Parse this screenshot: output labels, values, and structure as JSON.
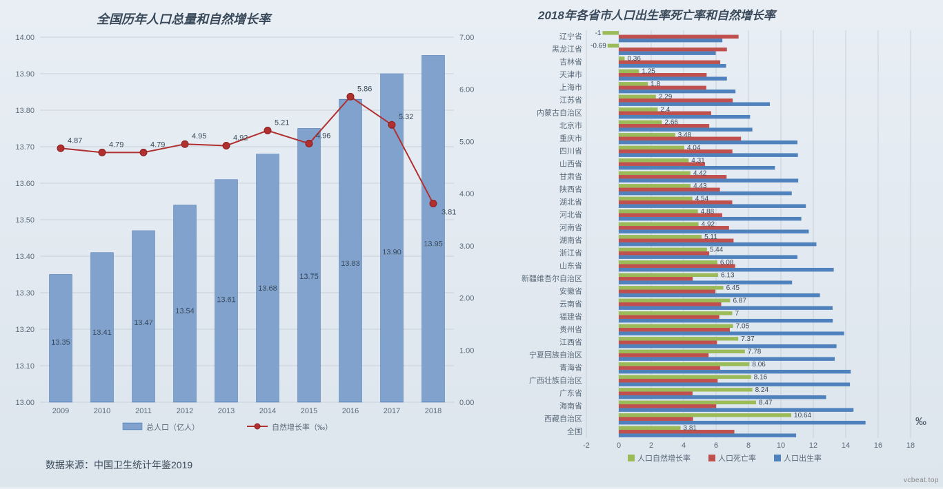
{
  "left_chart": {
    "title": "全国历年人口总量和自然增长率",
    "title_fontsize": 18,
    "type": "bar+line",
    "years": [
      "2009",
      "2010",
      "2011",
      "2012",
      "2013",
      "2014",
      "2015",
      "2016",
      "2017",
      "2018"
    ],
    "bar_series": {
      "label": "总人口（亿人）",
      "values": [
        13.35,
        13.41,
        13.47,
        13.54,
        13.61,
        13.68,
        13.75,
        13.83,
        13.9,
        13.95
      ],
      "color": "#4a7ab8",
      "pattern": "horizontal-hatch",
      "y_axis": "left"
    },
    "line_series": {
      "label": "自然增长率（‰）",
      "values": [
        4.87,
        4.79,
        4.79,
        4.95,
        4.92,
        5.21,
        4.96,
        5.86,
        5.32,
        3.81
      ],
      "color": "#b03030",
      "marker": "circle",
      "marker_size": 5,
      "line_width": 2,
      "y_axis": "right"
    },
    "y_left": {
      "min": 13.0,
      "max": 14.0,
      "step": 0.1,
      "labels": [
        "13.00",
        "13.10",
        "13.20",
        "13.30",
        "13.40",
        "13.50",
        "13.60",
        "13.70",
        "13.80",
        "13.90",
        "14.00"
      ]
    },
    "y_right": {
      "min": 0.0,
      "max": 7.0,
      "step": 1.0,
      "labels": [
        "0.00",
        "1.00",
        "2.00",
        "3.00",
        "4.00",
        "5.00",
        "6.00",
        "7.00"
      ]
    },
    "background_color": "transparent",
    "grid_color": "#c8d0d8",
    "source_note": "数据来源：中国卫生统计年鉴2019"
  },
  "right_chart": {
    "title": "2018年各省市人口出生率死亡率和自然增长率",
    "title_fontsize": 17,
    "type": "horizontal-grouped-bar",
    "x": {
      "min": -2,
      "max": 18,
      "step": 2,
      "labels": [
        "-2",
        "0",
        "2",
        "4",
        "6",
        "8",
        "10",
        "12",
        "14",
        "16",
        "18"
      ]
    },
    "unit_symbol": "‰",
    "series": [
      {
        "key": "natural",
        "label": "人口自然增长率",
        "color": "#9bbb59"
      },
      {
        "key": "death",
        "label": "人口死亡率",
        "color": "#c0504d"
      },
      {
        "key": "birth",
        "label": "人口出生率",
        "color": "#4f81bd"
      }
    ],
    "rows": [
      {
        "region": "辽宁省",
        "natural": -1.0,
        "death": 7.39,
        "birth": 6.39,
        "show_value": "-1"
      },
      {
        "region": "黑龙江省",
        "natural": -0.69,
        "death": 6.67,
        "birth": 5.98,
        "show_value": "-0.69"
      },
      {
        "region": "吉林省",
        "natural": 0.36,
        "death": 6.26,
        "birth": 6.62,
        "show_value": "0.36"
      },
      {
        "region": "天津市",
        "natural": 1.25,
        "death": 5.42,
        "birth": 6.67,
        "show_value": "1.25"
      },
      {
        "region": "上海市",
        "natural": 1.8,
        "death": 5.4,
        "birth": 7.2,
        "show_value": "1.8"
      },
      {
        "region": "江苏省",
        "natural": 2.29,
        "death": 7.03,
        "birth": 9.32,
        "show_value": "2.29"
      },
      {
        "region": "内蒙古自治区",
        "natural": 2.4,
        "death": 5.7,
        "birth": 8.1,
        "show_value": "2.4"
      },
      {
        "region": "北京市",
        "natural": 2.66,
        "death": 5.58,
        "birth": 8.24,
        "show_value": "2.66"
      },
      {
        "region": "重庆市",
        "natural": 3.48,
        "death": 7.54,
        "birth": 11.02,
        "show_value": "3.48"
      },
      {
        "region": "四川省",
        "natural": 4.04,
        "death": 7.01,
        "birth": 11.05,
        "show_value": "4.04"
      },
      {
        "region": "山西省",
        "natural": 4.31,
        "death": 5.32,
        "birth": 9.63,
        "show_value": "4.31"
      },
      {
        "region": "甘肃省",
        "natural": 4.42,
        "death": 6.65,
        "birth": 11.07,
        "show_value": "4.42"
      },
      {
        "region": "陕西省",
        "natural": 4.43,
        "death": 6.24,
        "birth": 10.67,
        "show_value": "4.43"
      },
      {
        "region": "湖北省",
        "natural": 4.54,
        "death": 7.0,
        "birth": 11.54,
        "show_value": "4.54"
      },
      {
        "region": "河北省",
        "natural": 4.88,
        "death": 6.38,
        "birth": 11.26,
        "show_value": "4.88"
      },
      {
        "region": "河南省",
        "natural": 4.92,
        "death": 6.8,
        "birth": 11.72,
        "show_value": "4.92"
      },
      {
        "region": "湖南省",
        "natural": 5.11,
        "death": 7.08,
        "birth": 12.19,
        "show_value": "5.11"
      },
      {
        "region": "浙江省",
        "natural": 5.44,
        "death": 5.58,
        "birth": 11.02,
        "show_value": "5.44"
      },
      {
        "region": "山东省",
        "natural": 6.08,
        "death": 7.18,
        "birth": 13.26,
        "show_value": "6.08"
      },
      {
        "region": "新疆维吾尔自治区",
        "natural": 6.13,
        "death": 4.56,
        "birth": 10.69,
        "show_value": "6.13"
      },
      {
        "region": "安徽省",
        "natural": 6.45,
        "death": 5.96,
        "birth": 12.41,
        "show_value": "6.45"
      },
      {
        "region": "云南省",
        "natural": 6.87,
        "death": 6.32,
        "birth": 13.19,
        "show_value": "6.87"
      },
      {
        "region": "福建省",
        "natural": 7.0,
        "death": 6.2,
        "birth": 13.2,
        "show_value": "7"
      },
      {
        "region": "贵州省",
        "natural": 7.05,
        "death": 6.85,
        "birth": 13.9,
        "show_value": "7.05"
      },
      {
        "region": "江西省",
        "natural": 7.37,
        "death": 6.06,
        "birth": 13.43,
        "show_value": "7.37"
      },
      {
        "region": "宁夏回族自治区",
        "natural": 7.78,
        "death": 5.54,
        "birth": 13.32,
        "show_value": "7.78"
      },
      {
        "region": "青海省",
        "natural": 8.06,
        "death": 6.25,
        "birth": 14.31,
        "show_value": "8.06"
      },
      {
        "region": "广西壮族自治区",
        "natural": 8.16,
        "death": 6.1,
        "birth": 14.26,
        "show_value": "8.16"
      },
      {
        "region": "广东省",
        "natural": 8.24,
        "death": 4.55,
        "birth": 12.79,
        "show_value": "8.24"
      },
      {
        "region": "海南省",
        "natural": 8.47,
        "death": 6.01,
        "birth": 14.48,
        "show_value": "8.47"
      },
      {
        "region": "西藏自治区",
        "natural": 10.64,
        "death": 4.58,
        "birth": 15.22,
        "show_value": "10.64"
      },
      {
        "region": "全国",
        "natural": 3.81,
        "death": 7.13,
        "birth": 10.94,
        "show_value": "3.81"
      }
    ]
  },
  "watermark": "vcbeat.top"
}
